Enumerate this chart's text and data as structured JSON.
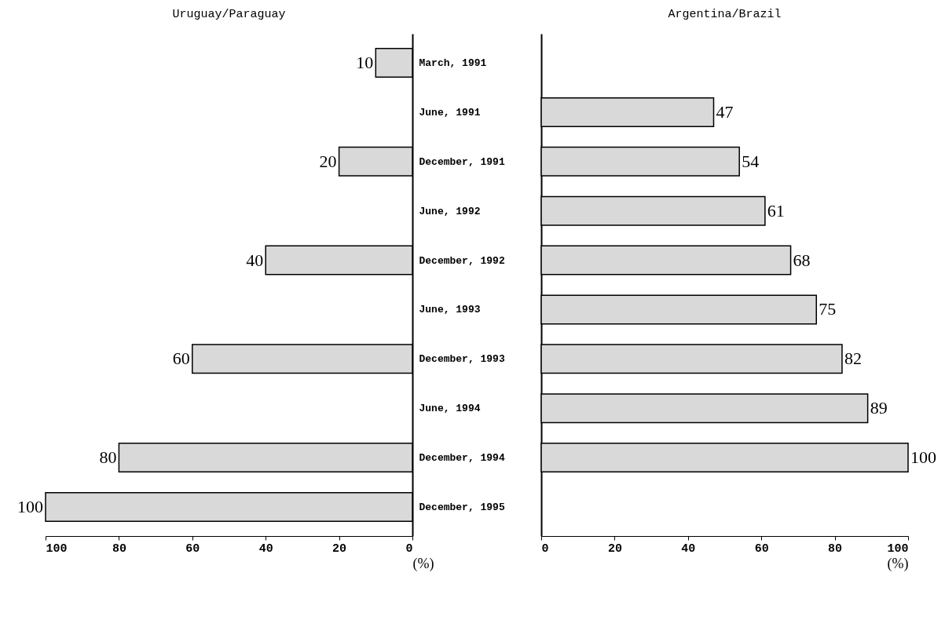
{
  "chart_data": [
    {
      "type": "bar",
      "orientation": "horizontal",
      "title": "Uruguay/Paraguay",
      "categories": [
        "March, 1991",
        "June, 1991",
        "December, 1991",
        "June, 1992",
        "December, 1992",
        "June, 1993",
        "December, 1993",
        "June, 1994",
        "December, 1994",
        "December, 1995"
      ],
      "values": [
        10,
        null,
        20,
        null,
        40,
        null,
        60,
        null,
        80,
        100
      ],
      "color": "#d9d9d9",
      "xlim": [
        100,
        0
      ],
      "xticks": [
        100,
        80,
        60,
        40,
        20,
        0
      ],
      "xlabel": "(%)",
      "data_labels": true
    },
    {
      "type": "bar",
      "orientation": "horizontal",
      "title": "Argentina/Brazil",
      "categories": [
        "March, 1991",
        "June, 1991",
        "December, 1991",
        "June, 1992",
        "December, 1992",
        "June, 1993",
        "December, 1993",
        "June, 1994",
        "December, 1994",
        "December, 1995"
      ],
      "values": [
        null,
        47,
        54,
        61,
        68,
        75,
        82,
        89,
        100,
        null
      ],
      "color": "#d9d9d9",
      "xlim": [
        0,
        100
      ],
      "xticks": [
        0,
        20,
        40,
        60,
        80,
        100
      ],
      "xlabel": "(%)",
      "data_labels": true,
      "tick_labels": "x"
    }
  ]
}
